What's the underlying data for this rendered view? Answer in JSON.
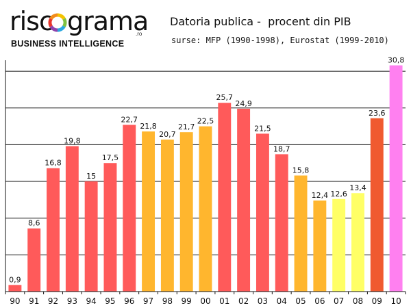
{
  "brand": {
    "name_left": "risc",
    "name_right": "grama",
    "domain": ".ro",
    "tagline": "BUSINESS INTELLIGENCE",
    "ring_colors": [
      "#f4c300",
      "#7fc241",
      "#2aa8e0",
      "#8e44ad",
      "#e8352c",
      "#f28c1b"
    ]
  },
  "chart_data": {
    "type": "bar",
    "title": "Datoria publica -  procent din PIB",
    "subtitle": "surse: MFP (1990-1998), Eurostat (1999-2010)",
    "xlabel": "",
    "ylabel": "",
    "ylim": [
      0,
      31.5
    ],
    "grid": true,
    "categories": [
      "90",
      "91",
      "92",
      "93",
      "94",
      "95",
      "96",
      "97",
      "98",
      "99",
      "00",
      "01",
      "02",
      "03",
      "04",
      "05",
      "06",
      "07",
      "08",
      "09",
      "10"
    ],
    "values": [
      0.9,
      8.6,
      16.8,
      19.8,
      15,
      17.5,
      22.7,
      21.8,
      20.7,
      21.7,
      22.5,
      25.7,
      24.9,
      21.5,
      18.7,
      15.8,
      12.4,
      12.6,
      13.4,
      23.6,
      30.8
    ],
    "labels": [
      "0,9",
      "8,6",
      "16,8",
      "19,8",
      "15",
      "17,5",
      "22,7",
      "21,8",
      "20,7",
      "21,7",
      "22,5",
      "25,7",
      "24,9",
      "21,5",
      "18,7",
      "15,8",
      "12,4",
      "12,6",
      "13,4",
      "23,6",
      "30,8"
    ],
    "colors": [
      "#ff5a5a",
      "#ff5a5a",
      "#ff5a5a",
      "#ff5a5a",
      "#ff5a5a",
      "#ff5a5a",
      "#ff5a5a",
      "#ffb62e",
      "#ffb62e",
      "#ffb62e",
      "#ffb62e",
      "#ff5a5a",
      "#ff5a5a",
      "#ff5a5a",
      "#ff5a5a",
      "#ffb62e",
      "#ffb62e",
      "#ffff66",
      "#ffff66",
      "#f05a30",
      "#ff80f0"
    ]
  }
}
